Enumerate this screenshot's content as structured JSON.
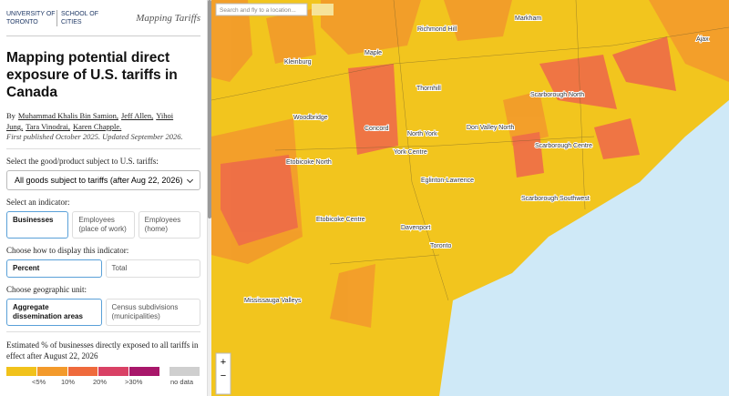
{
  "header": {
    "university": "UNIVERSITY OF TORONTO",
    "school": "SCHOOL OF CITIES",
    "site_title": "Mapping Tariffs"
  },
  "article": {
    "title": "Mapping potential direct exposure of U.S. tariffs in Canada",
    "byline_prefix": "By",
    "authors": [
      "Muhammad Khalis Bin Samion,",
      "Jeff Allen,",
      "Yihoi Jung,",
      "Tara Vinodrai,",
      "Karen Chapple."
    ],
    "published": "First published October 2025. Updated September 2026."
  },
  "controls": {
    "product_label": "Select the good/product subject to U.S. tariffs:",
    "product_value": "All goods subject to tariffs (after Aug 22, 2026)",
    "indicator_label": "Select an indicator:",
    "indicator_options": [
      "Businesses",
      "Employees (place of work)",
      "Employees (home)"
    ],
    "display_label": "Choose how to display this indicator:",
    "display_options": [
      "Percent",
      "Total"
    ],
    "unit_label": "Choose geographic unit:",
    "unit_options": [
      "Aggregate dissemination areas",
      "Census subdivisions (municipalities)"
    ]
  },
  "legend": {
    "title": "Estimated % of businesses directly exposed to all tariffs in effect after August 22, 2026",
    "labels": [
      "<5%",
      "10%",
      "20%",
      ">30%",
      "no data"
    ]
  },
  "map": {
    "search_placeholder": "Search and fly to a location...",
    "zoom_in": "+",
    "zoom_out": "−",
    "places": [
      "Markham",
      "Richmond Hill",
      "Kleinburg",
      "Maple",
      "Concord",
      "Woodbridge",
      "Thornhill",
      "North York",
      "Scarborough North",
      "Etobicoke North",
      "York Centre",
      "Don Valley North",
      "Etobicoke Centre",
      "Davenport",
      "Toronto",
      "Mississauga Valleys",
      "Ajax",
      "Scarborough Southwest",
      "Scarborough Centre",
      "Eglinton-Lawrence"
    ]
  }
}
